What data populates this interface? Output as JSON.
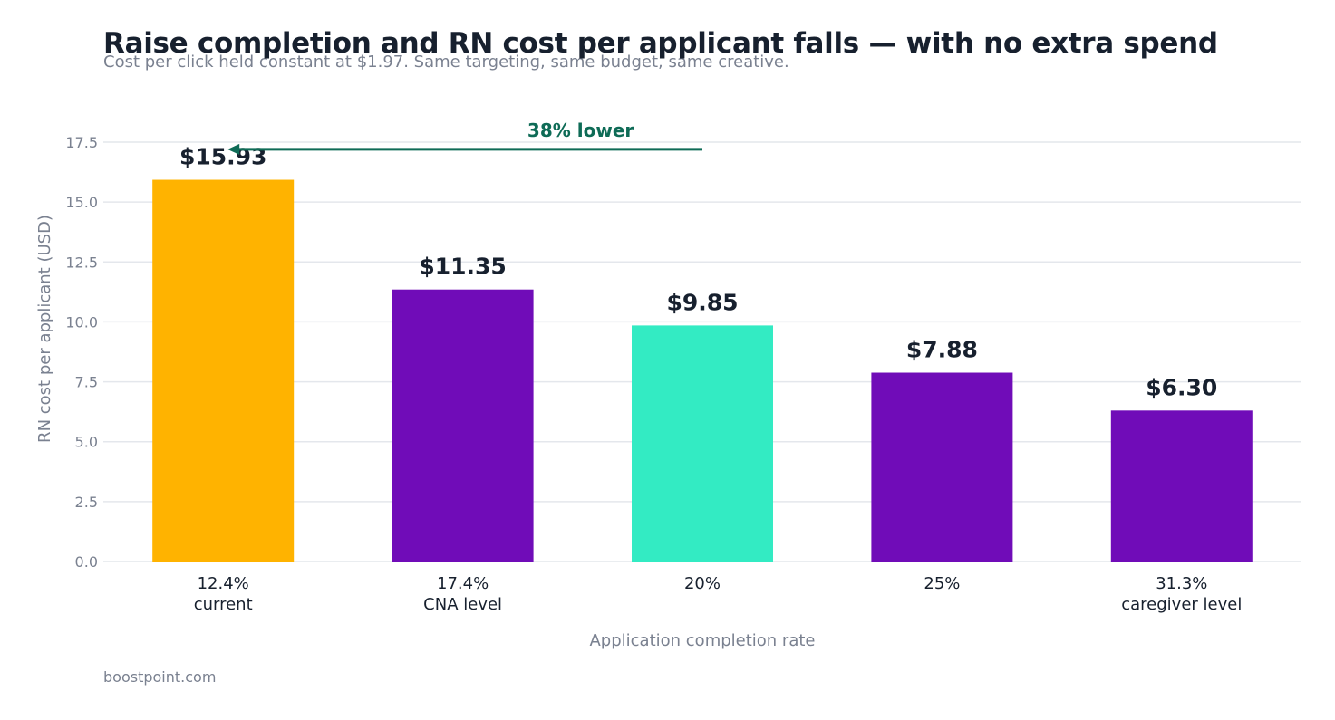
{
  "title": "Raise completion and RN cost per applicant falls — with no extra spend",
  "subtitle": "Cost per click held constant at $1.97. Same targeting, same budget, same creative.",
  "source": "boostpoint.com",
  "colors": {
    "current": "#FFB300",
    "highlight": "#33EBC3",
    "default": "#700CB8",
    "annotation": "#0E6B56",
    "grid": "#E4E7EC",
    "label": "#17202E",
    "muted": "#7A8190"
  },
  "chart_data": {
    "type": "bar",
    "categories": [
      [
        "12.4%",
        "current"
      ],
      [
        "17.4%",
        "CNA level"
      ],
      [
        "20%"
      ],
      [
        "25%"
      ],
      [
        "31.3%",
        "caregiver level"
      ]
    ],
    "values": [
      15.93,
      11.35,
      9.85,
      7.88,
      6.3
    ],
    "value_labels": [
      "$15.93",
      "$11.35",
      "$9.85",
      "$7.88",
      "$6.30"
    ],
    "bar_colors": [
      "#FFB300",
      "#700CB8",
      "#33EBC3",
      "#700CB8",
      "#700CB8"
    ],
    "xlabel": "Application completion rate",
    "ylabel": "RN cost per applicant (USD)",
    "ylim": [
      0,
      17.5
    ],
    "yticks": [
      0,
      2.5,
      5,
      7.5,
      10,
      12.5,
      15,
      17.5
    ],
    "ytick_labels": [
      "0.0",
      "2.5",
      "5.0",
      "7.5",
      "10.0",
      "12.5",
      "15.0",
      "17.5"
    ],
    "grid": true,
    "annotation": {
      "text": "38% lower",
      "from_category": 2,
      "to_category": 0,
      "y": 17.2
    }
  }
}
